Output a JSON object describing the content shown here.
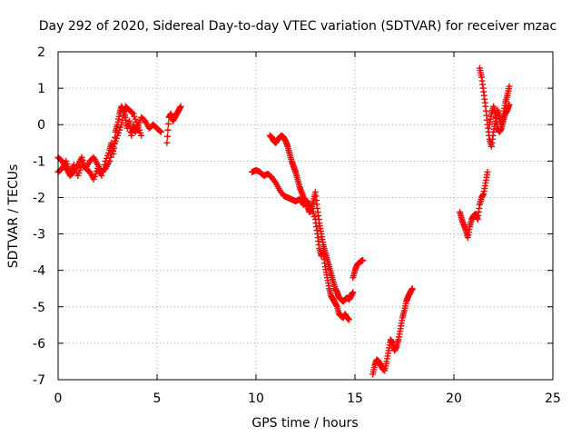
{
  "chart_data": {
    "type": "scatter",
    "title": "Day 292 of 2020, Sidereal Day-to-day VTEC variation (SDTVAR) for receiver mzac",
    "xlabel": "GPS time / hours",
    "ylabel": "SDTVAR / TECUs",
    "xlim": [
      0,
      25
    ],
    "ylim": [
      -7,
      2
    ],
    "grid": true,
    "marker": "+",
    "color": "#ff0000",
    "xticks": [
      0,
      5,
      10,
      15,
      20,
      25
    ],
    "yticks": [
      -7,
      -6,
      -5,
      -4,
      -3,
      -2,
      -1,
      0,
      1,
      2
    ],
    "segments": [
      {
        "x": [
          0.0,
          0.2,
          0.4,
          0.6,
          0.8,
          1.0,
          1.2,
          1.4,
          1.6,
          1.8,
          2.0,
          2.2,
          2.4,
          2.6,
          2.7,
          2.8,
          2.9,
          3.0,
          3.1,
          3.2,
          3.3,
          3.4,
          3.5,
          3.6,
          3.7,
          3.8,
          3.9,
          4.0,
          4.2,
          4.4,
          4.6,
          4.8,
          5.0,
          5.2
        ],
        "y": [
          -1.3,
          -1.2,
          -1.0,
          -1.3,
          -1.1,
          -1.4,
          -1.1,
          -1.2,
          -1.3,
          -1.5,
          -1.2,
          -1.4,
          -1.0,
          -0.7,
          -0.5,
          -0.8,
          -0.2,
          0.0,
          0.3,
          0.5,
          0.4,
          0.2,
          -0.1,
          0.1,
          -0.3,
          0.0,
          -0.2,
          -0.1,
          0.2,
          0.1,
          -0.1,
          0.0,
          -0.1,
          -0.2
        ]
      },
      {
        "x": [
          0.0,
          0.2,
          0.4,
          0.6,
          0.8,
          1.0,
          1.2,
          1.4,
          1.6,
          1.8,
          2.0,
          2.2,
          2.4,
          2.6,
          2.8,
          3.0,
          3.2,
          3.4,
          3.6,
          3.8,
          4.0,
          4.2
        ],
        "y": [
          -0.9,
          -1.0,
          -1.2,
          -1.4,
          -1.3,
          -1.1,
          -0.9,
          -1.2,
          -1.0,
          -0.9,
          -1.1,
          -1.3,
          -1.2,
          -1.0,
          -0.6,
          -0.3,
          0.0,
          0.5,
          0.4,
          0.3,
          0.0,
          -0.3
        ]
      },
      {
        "x": [
          5.5,
          5.6,
          5.7,
          5.8,
          5.9,
          6.0,
          6.1,
          6.2
        ],
        "y": [
          -0.5,
          0.2,
          0.3,
          0.1,
          0.2,
          0.3,
          0.4,
          0.5
        ]
      },
      {
        "x": [
          9.8,
          10.0,
          10.2,
          10.4,
          10.6,
          10.8,
          11.0,
          11.2,
          11.4,
          11.6,
          11.8,
          12.0,
          12.2,
          12.4,
          12.6,
          12.8,
          13.0,
          13.1,
          13.2,
          13.3,
          13.4,
          13.5,
          13.6,
          13.7,
          13.8,
          13.9,
          14.0,
          14.1,
          14.2,
          14.3,
          14.4,
          14.5,
          14.6,
          14.7
        ],
        "y": [
          -1.3,
          -1.25,
          -1.3,
          -1.4,
          -1.35,
          -1.45,
          -1.6,
          -1.8,
          -1.95,
          -2.0,
          -2.05,
          -2.1,
          -2.05,
          -2.2,
          -2.1,
          -2.3,
          -2.6,
          -3.0,
          -3.4,
          -3.6,
          -3.5,
          -3.9,
          -4.2,
          -4.5,
          -4.7,
          -4.8,
          -4.9,
          -5.0,
          -5.2,
          -5.25,
          -5.3,
          -5.2,
          -5.3,
          -5.35
        ]
      },
      {
        "x": [
          10.7,
          10.8,
          10.9,
          11.0,
          11.1,
          11.2,
          11.3,
          11.4,
          11.5,
          11.6,
          11.7,
          11.8,
          11.9,
          12.0,
          12.1,
          12.2,
          12.3,
          12.4,
          12.5,
          12.6,
          12.7,
          12.8,
          12.9,
          13.0,
          13.1,
          13.2,
          13.3,
          13.4,
          13.5,
          13.6,
          13.7,
          13.8,
          13.9,
          14.0,
          14.1,
          14.2,
          14.3,
          14.4,
          14.5,
          14.6,
          14.7,
          14.8,
          14.9
        ],
        "y": [
          -0.3,
          -0.35,
          -0.45,
          -0.5,
          -0.4,
          -0.35,
          -0.3,
          -0.35,
          -0.45,
          -0.6,
          -0.8,
          -1.0,
          -1.15,
          -1.3,
          -1.5,
          -1.7,
          -1.85,
          -2.0,
          -2.1,
          -2.25,
          -2.4,
          -2.3,
          -2.1,
          -1.85,
          -2.3,
          -2.7,
          -3.0,
          -3.3,
          -3.5,
          -3.7,
          -3.9,
          -4.1,
          -4.3,
          -4.5,
          -4.6,
          -4.75,
          -4.8,
          -4.85,
          -4.8,
          -4.75,
          -4.8,
          -4.7,
          -4.6
        ]
      },
      {
        "x": [
          14.9,
          15.0,
          15.1,
          15.2,
          15.3,
          15.4
        ],
        "y": [
          -4.2,
          -4.0,
          -3.85,
          -3.8,
          -3.75,
          -3.72
        ]
      },
      {
        "x": [
          15.9,
          16.0,
          16.1,
          16.2,
          16.3,
          16.4,
          16.5,
          16.6,
          16.7,
          16.8,
          16.9,
          17.0,
          17.1,
          17.2,
          17.3,
          17.4,
          17.5,
          17.6,
          17.7,
          17.8,
          17.9
        ],
        "y": [
          -6.85,
          -6.6,
          -6.45,
          -6.5,
          -6.6,
          -6.7,
          -6.75,
          -6.5,
          -6.2,
          -5.9,
          -6.0,
          -6.2,
          -6.1,
          -5.9,
          -5.6,
          -5.3,
          -5.1,
          -4.85,
          -4.7,
          -4.6,
          -4.5
        ]
      },
      {
        "x": [
          20.3,
          20.4,
          20.5,
          20.6,
          20.7,
          20.8,
          20.9,
          21.0,
          21.1,
          21.2,
          21.3,
          21.4,
          21.5,
          21.6,
          21.7
        ],
        "y": [
          -2.4,
          -2.6,
          -2.75,
          -2.9,
          -3.1,
          -2.8,
          -2.6,
          -2.5,
          -2.45,
          -2.6,
          -2.2,
          -2.0,
          -1.9,
          -1.6,
          -1.3
        ]
      },
      {
        "x": [
          21.3,
          21.4,
          21.5,
          21.6,
          21.7,
          21.8,
          21.9,
          22.0,
          22.1,
          22.2,
          22.3,
          22.4,
          22.5,
          22.6,
          22.7,
          22.8
        ],
        "y": [
          1.55,
          1.3,
          0.9,
          0.5,
          0.0,
          -0.4,
          -0.6,
          -0.2,
          0.1,
          0.4,
          0.2,
          0.0,
          0.3,
          0.6,
          0.8,
          1.05
        ]
      },
      {
        "x": [
          21.8,
          21.9,
          22.0,
          22.1,
          22.2,
          22.3,
          22.4,
          22.5,
          22.6,
          22.7,
          22.8
        ],
        "y": [
          0.0,
          0.3,
          0.5,
          0.3,
          -0.1,
          -0.2,
          -0.1,
          0.1,
          0.3,
          0.4,
          0.55
        ]
      }
    ]
  }
}
